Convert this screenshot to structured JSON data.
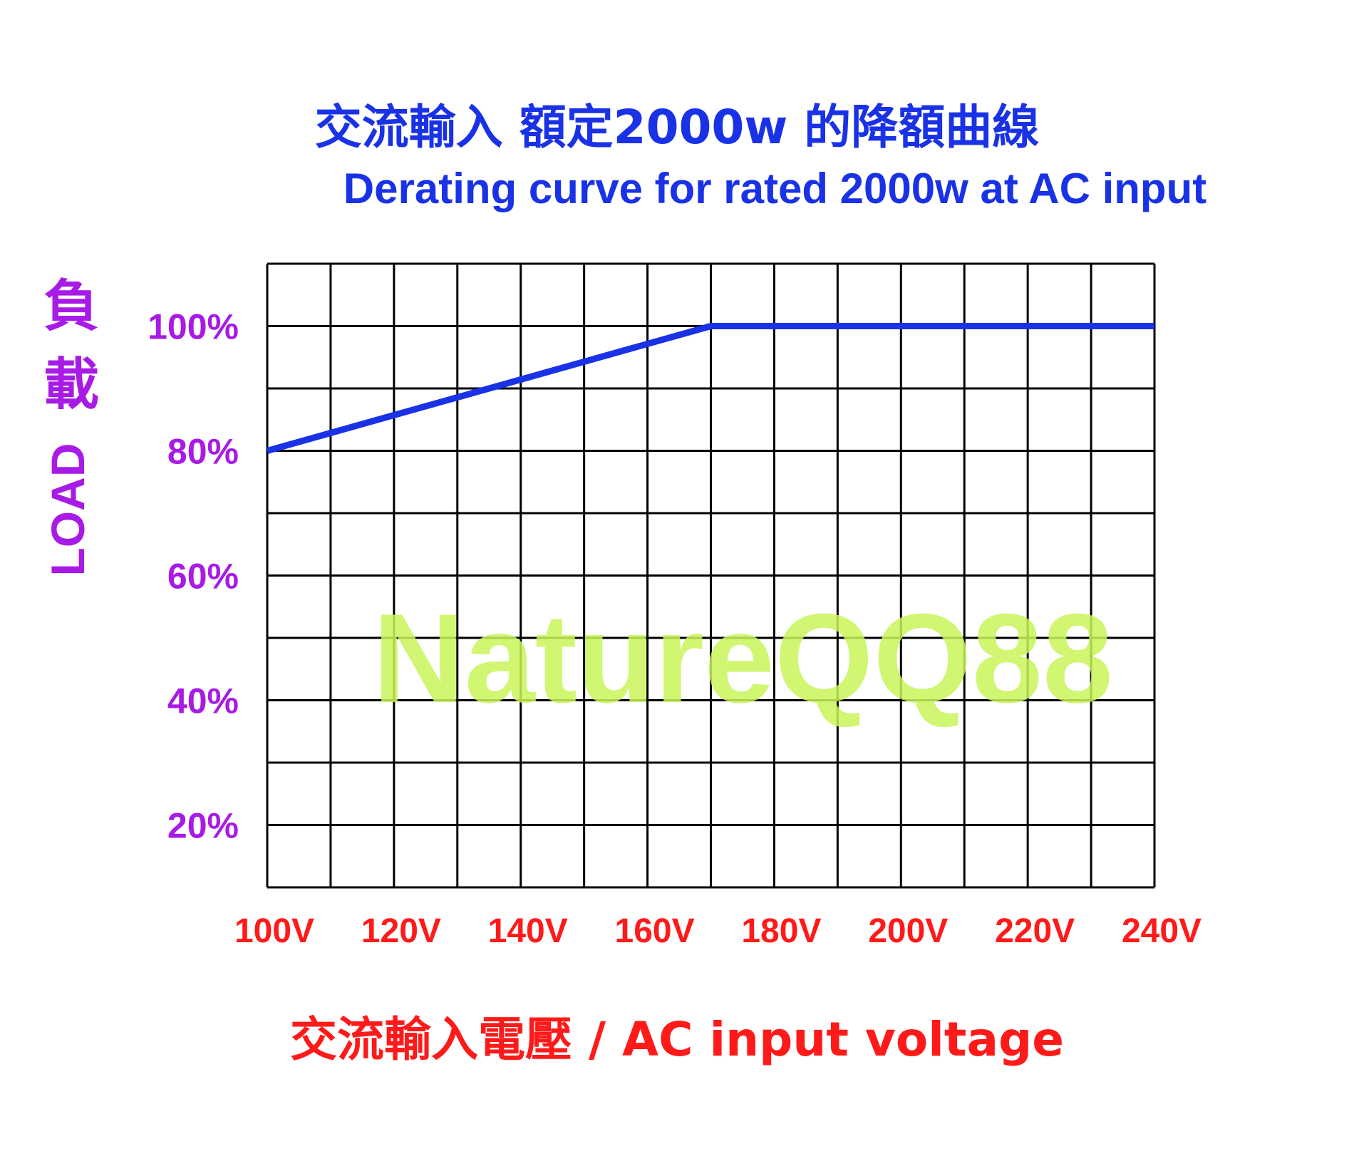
{
  "chart_data": {
    "type": "line",
    "title": "交流輸入 額定2000w 的降額曲線",
    "subtitle": "Derating curve for rated 2000w at AC input",
    "xlabel": "交流輸入電壓 / AC input voltage",
    "ylabel_zh": "負載",
    "ylabel_en": "LOAD",
    "x_ticks": [
      "100V",
      "120V",
      "140V",
      "160V",
      "180V",
      "200V",
      "220V",
      "240V"
    ],
    "y_ticks": [
      "100%",
      "80%",
      "60%",
      "40%",
      "20%"
    ],
    "y_tick_values": [
      100,
      80,
      60,
      40,
      20
    ],
    "xlim": [
      100,
      240
    ],
    "ylim": [
      10,
      110
    ],
    "grid": true,
    "series": [
      {
        "x": [
          100,
          170,
          240
        ],
        "y": [
          80,
          100,
          100
        ]
      }
    ],
    "watermark": "NatureQQ88",
    "colors": {
      "title": "#1a32e6",
      "series_line": "#1a32e6",
      "y_axis_text": "#a81ae6",
      "x_axis_text": "#ff1a1a",
      "grid": "#000000",
      "watermark": "#c8f55a"
    }
  }
}
